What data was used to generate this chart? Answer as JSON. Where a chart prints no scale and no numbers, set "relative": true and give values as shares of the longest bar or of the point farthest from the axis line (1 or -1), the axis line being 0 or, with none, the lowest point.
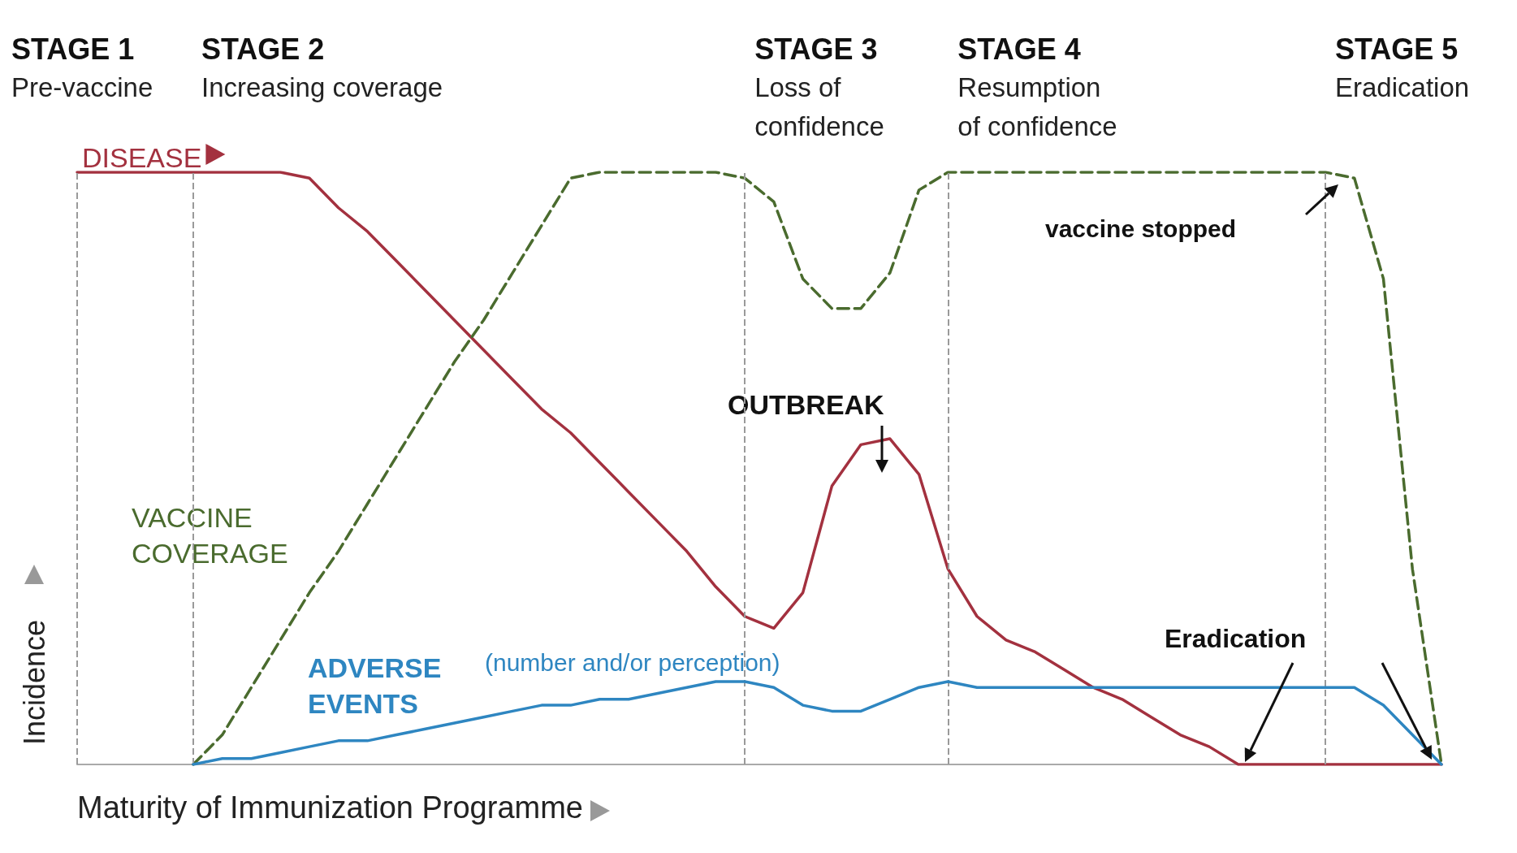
{
  "chart_data": {
    "type": "line",
    "relative": true,
    "xlabel": "Maturity of Immunization Programme",
    "ylabel": "Incidence",
    "categories": [
      null,
      null,
      null,
      null,
      null,
      null,
      null,
      null,
      null,
      null,
      null,
      null,
      null,
      null,
      null,
      null,
      null,
      null,
      null,
      null,
      null,
      null,
      null,
      null,
      null,
      null,
      null,
      null,
      null,
      null,
      null,
      null,
      null,
      null,
      null,
      null,
      null,
      null,
      null,
      null,
      null,
      null,
      null,
      null,
      null,
      null,
      null,
      null
    ],
    "series": [
      {
        "name": "DISEASE",
        "color": "#a3313f",
        "line_style": "solid",
        "values": [
          1,
          1,
          1,
          1,
          1,
          1,
          1,
          1,
          0.99,
          0.94,
          0.9,
          0.85,
          0.8,
          0.75,
          0.7,
          0.65,
          0.6,
          0.56,
          0.51,
          0.46,
          0.41,
          0.36,
          0.3,
          0.25,
          0.23,
          0.29,
          0.47,
          0.54,
          0.55,
          0.49,
          0.33,
          0.25,
          0.21,
          0.19,
          0.16,
          0.13,
          0.11,
          0.08,
          0.05,
          0.03,
          0,
          0,
          0,
          0,
          0,
          0,
          0,
          0
        ]
      },
      {
        "name": "VACCINE COVERAGE",
        "color": "#4a6b2e",
        "line_style": "dashed",
        "values": [
          null,
          null,
          null,
          null,
          0,
          0.05,
          0.13,
          0.21,
          0.29,
          0.36,
          0.44,
          0.52,
          0.6,
          0.68,
          0.75,
          0.83,
          0.91,
          0.99,
          1,
          1,
          1,
          1,
          1,
          0.99,
          0.95,
          0.82,
          0.77,
          0.77,
          0.83,
          0.97,
          1,
          1,
          1,
          1,
          1,
          1,
          1,
          1,
          1,
          1,
          1,
          1,
          1,
          1,
          0.99,
          0.82,
          0.33,
          0
        ]
      },
      {
        "name": "ADVERSE EVENTS",
        "color": "#2e86c1",
        "line_style": "solid",
        "values": [
          null,
          null,
          null,
          null,
          0,
          0.01,
          0.01,
          0.02,
          0.03,
          0.04,
          0.04,
          0.05,
          0.06,
          0.07,
          0.08,
          0.09,
          0.1,
          0.1,
          0.11,
          0.11,
          0.12,
          0.13,
          0.14,
          0.14,
          0.13,
          0.1,
          0.09,
          0.09,
          0.11,
          0.13,
          0.14,
          0.13,
          0.13,
          0.13,
          0.13,
          0.13,
          0.13,
          0.13,
          0.13,
          0.13,
          0.13,
          0.13,
          0.13,
          0.13,
          0.13,
          0.1,
          0.05,
          0
        ]
      }
    ],
    "annotations": [
      "STAGE 1\nPre-vaccine",
      "STAGE 2\nIncreasing coverage",
      "STAGE 3\nLoss of\nconfidence",
      "STAGE 4\nResumption\nof confidence",
      "STAGE 5\nEradication",
      "(number and/or perception)",
      "OUTBREAK",
      "vaccine stopped",
      "Eradication"
    ],
    "legend": "top left",
    "grid": "x",
    "marker": "none"
  }
}
